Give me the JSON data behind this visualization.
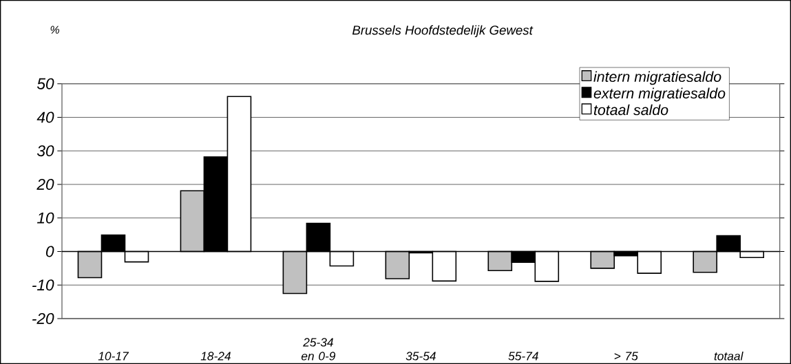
{
  "chart_data": {
    "type": "bar",
    "title": "Brussels Hoofdstedelijk Gewest",
    "ylabel": "%",
    "categories": [
      "10-17",
      "18-24",
      "25-34 en 0-9",
      "35-54",
      "55-74",
      "> 75",
      "totaal"
    ],
    "series": [
      {
        "name": "intern migratiesaldo",
        "color": "#c0c0c0",
        "values": [
          -7.8,
          18.1,
          -12.5,
          -8.1,
          -5.7,
          -5.0,
          -6.2
        ]
      },
      {
        "name": "extern migratiesaldo",
        "color": "#000000",
        "values": [
          4.9,
          28.2,
          8.4,
          -0.4,
          -3.2,
          -1.3,
          4.7
        ]
      },
      {
        "name": "totaal saldo",
        "color": "#ffffff",
        "values": [
          -3.1,
          46.2,
          -4.3,
          -8.8,
          -8.9,
          -6.5,
          -1.8
        ]
      }
    ],
    "ylim": [
      -20,
      50
    ],
    "yticks": [
      -20,
      -10,
      0,
      10,
      20,
      30,
      40,
      50
    ],
    "grid": "y",
    "legend": "top right"
  }
}
